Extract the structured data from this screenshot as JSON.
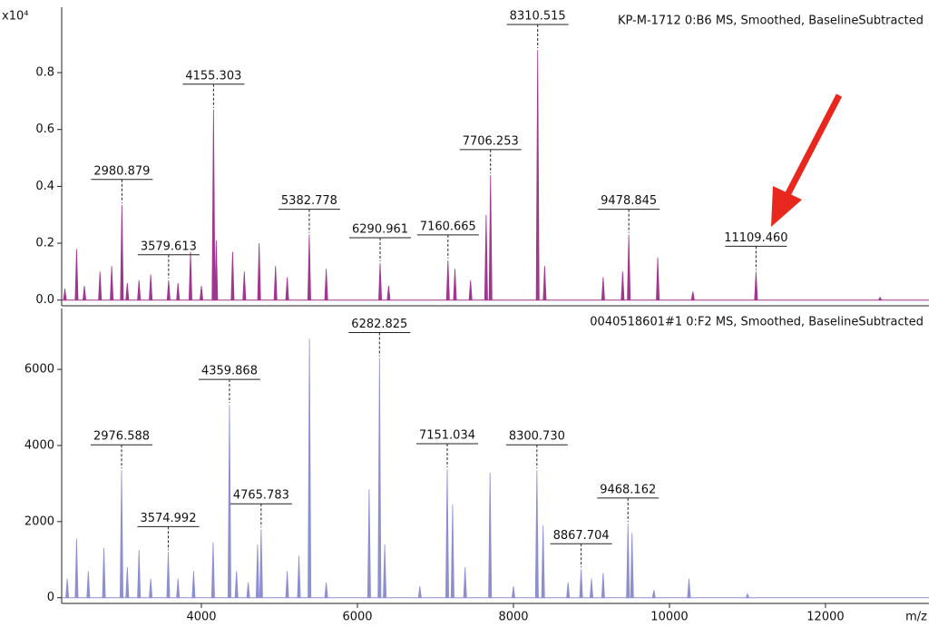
{
  "chart_data": [
    {
      "type": "spectrum",
      "title": "KP-M-1712 0:B6 MS, Smoothed, BaselineSubtracted",
      "y_unit_label": "x10⁴",
      "color": "#a0368f",
      "x": [
        2250,
        2400,
        2500,
        2700,
        2850,
        2980.879,
        3050,
        3200,
        3350,
        3579.613,
        3700,
        3860,
        4000,
        4155.303,
        4190,
        4400,
        4550,
        4740,
        4950,
        5100,
        5382.778,
        5600,
        6290.961,
        6400,
        7160.665,
        7250,
        7450,
        7650,
        7706.253,
        8310.515,
        8400,
        9150,
        9400,
        9478.845,
        9850,
        10300,
        11109.46,
        12700
      ],
      "values": [
        0.04,
        0.18,
        0.05,
        0.1,
        0.12,
        0.335,
        0.06,
        0.07,
        0.09,
        0.07,
        0.06,
        0.17,
        0.05,
        0.67,
        0.21,
        0.17,
        0.1,
        0.2,
        0.12,
        0.08,
        0.23,
        0.11,
        0.13,
        0.05,
        0.14,
        0.11,
        0.07,
        0.3,
        0.44,
        0.88,
        0.12,
        0.08,
        0.1,
        0.23,
        0.15,
        0.03,
        0.1,
        0.01
      ],
      "peak_labels": [
        2980.879,
        3579.613,
        4155.303,
        5382.778,
        6290.961,
        7160.665,
        7706.253,
        8310.515,
        9478.845,
        {
          "value": 11109.46,
          "label": "11109.460"
        }
      ],
      "xlim": [
        2209,
        13326
      ],
      "ylim": [
        -0.02,
        1.03
      ],
      "yticks": [
        {
          "value": 0,
          "label": "0.0"
        },
        0.2,
        0.4,
        0.6,
        0.8
      ]
    },
    {
      "type": "spectrum",
      "title": "0040518601#1 0:F2 MS, Smoothed, BaselineSubtracted",
      "color": "#8d8fd0",
      "x_label": "m/z",
      "x": [
        2280,
        2400,
        2550,
        2750,
        2976.588,
        3050,
        3200,
        3350,
        3574.992,
        3700,
        3900,
        4150,
        4359.868,
        4450,
        4600,
        4720,
        4765.783,
        5100,
        5250,
        5385,
        5600,
        6150,
        6282.825,
        6350,
        6800,
        7151.034,
        7220,
        7380,
        7700,
        8000,
        8300.73,
        8380,
        8700,
        8867.704,
        9000,
        9150,
        9468.162,
        9520,
        9800,
        10250,
        11000
      ],
      "values": [
        500,
        1550,
        700,
        1300,
        3350,
        800,
        1250,
        500,
        1200,
        500,
        700,
        1450,
        5070,
        700,
        400,
        1400,
        1800,
        700,
        1100,
        6800,
        400,
        2850,
        6300,
        1400,
        300,
        3380,
        2450,
        800,
        3280,
        300,
        3350,
        1900,
        400,
        750,
        500,
        650,
        1950,
        1700,
        200,
        500,
        100
      ],
      "peak_labels": [
        2976.588,
        3574.992,
        4359.868,
        4765.783,
        6282.825,
        7151.034,
        {
          "value": 8300.73,
          "label": "8300.730"
        },
        8867.704,
        9468.162
      ],
      "xlim": [
        2209,
        13326
      ],
      "ylim": [
        -150,
        7600
      ],
      "yticks": [
        0,
        2000,
        4000,
        6000
      ],
      "xticks": [
        4000,
        6000,
        8000,
        10000,
        12000
      ]
    }
  ]
}
